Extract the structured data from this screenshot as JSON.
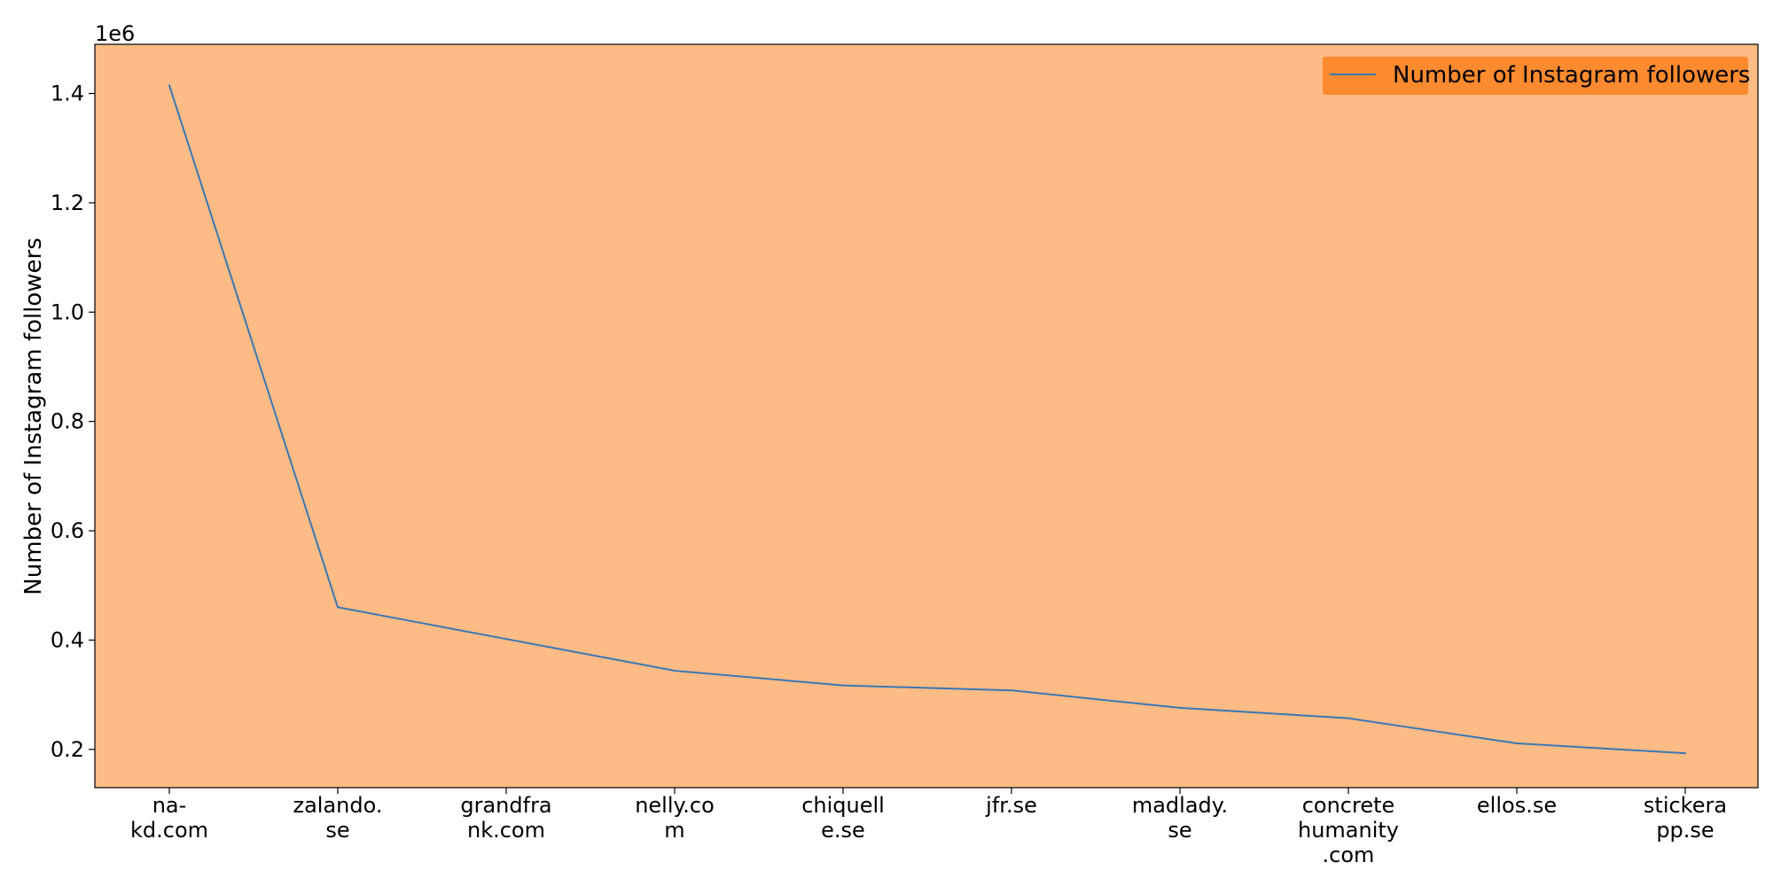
{
  "chart_data": {
    "type": "line",
    "categories": [
      [
        "na-",
        "kd.com"
      ],
      [
        "zalando.",
        "se"
      ],
      [
        "grandfra",
        "nk.com"
      ],
      [
        "nelly.co",
        "m"
      ],
      [
        "chiquell",
        "e.se"
      ],
      [
        "jfr.se"
      ],
      [
        "madlady.",
        "se"
      ],
      [
        "concrete",
        "humanity",
        ".com"
      ],
      [
        "ellos.se"
      ],
      [
        "stickera",
        "pp.se"
      ]
    ],
    "series": [
      {
        "name": "Number of Instagram followers",
        "values": [
          1415000,
          460000,
          402000,
          344000,
          317000,
          308000,
          276000,
          257000,
          211000,
          193000
        ]
      }
    ],
    "ylabel": "Number of Instagram followers",
    "xlabel": "",
    "y_offset_text": "1e6",
    "ylim": [
      130000,
      1490000
    ],
    "yticks": [
      200000,
      400000,
      600000,
      800000,
      1000000,
      1200000,
      1400000
    ],
    "ytick_labels": [
      "0.2",
      "0.4",
      "0.6",
      "0.8",
      "1.0",
      "1.2",
      "1.4"
    ],
    "legend_position": "top-right",
    "grid": false,
    "colors": {
      "plot_background": "#fdbb85",
      "legend_background": "#fc8a2e",
      "line": "#3a78b5",
      "axis": "#000000"
    }
  }
}
